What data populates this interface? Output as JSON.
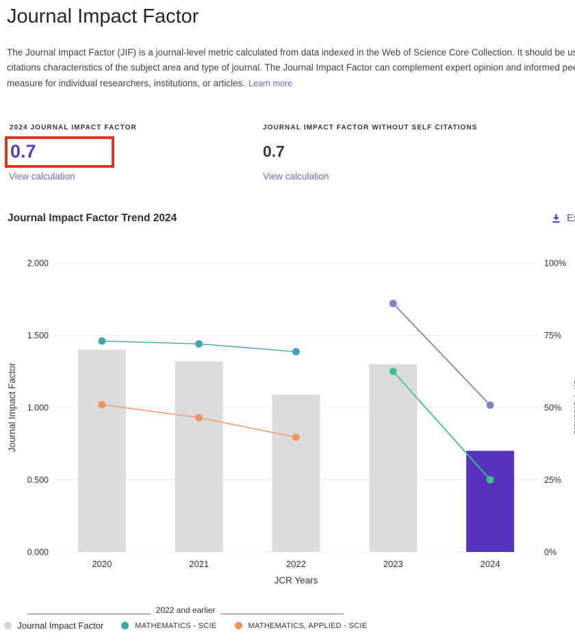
{
  "page": {
    "title": "Journal Impact Factor",
    "description_lines": [
      "The Journal Impact Factor (JIF) is a journal-level metric calculated from data indexed in the Web of Science Core Collection. It should be used with careful attention to the many factors that influence citation rates, such as the volume of publication and",
      "citations characteristics of the subject area and type of journal. The Journal Impact Factor can complement expert opinion and informed peer review. In the case of academic evaluation for tenure, it is inappropriate to use a journal-level metric as a proxy",
      "measure for individual researchers, institutions, or articles."
    ],
    "learn_more_label": "Learn more"
  },
  "metrics": {
    "jif": {
      "label": "2024 JOURNAL IMPACT FACTOR",
      "value": "0.7",
      "link_label": "View calculation"
    },
    "jif_without_self_citations": {
      "label": "JOURNAL IMPACT FACTOR WITHOUT SELF CITATIONS",
      "value": "0.7",
      "link_label": "View calculation"
    }
  },
  "trend_section": {
    "title": "Journal Impact Factor Trend 2024",
    "export_label": "Export"
  },
  "colors": {
    "accent_purple": "#5E33BF",
    "bar_gray": "#DCDCDC",
    "bar_highlight_purple": "#5733BE",
    "teal": "#44A3B1",
    "orange": "#F0945F",
    "slate_blue": "#7B85C9",
    "green": "#3DC28C",
    "gridline": "#EDEDED",
    "red_annotation": "#E63223"
  },
  "chart_data": {
    "type": "bar+line",
    "title": "Journal Impact Factor Trend 2024",
    "xlabel": "JCR Years",
    "ylabel_left": "Journal Impact Factor",
    "ylabel_right": "JIF Percentile",
    "categories": [
      "2020",
      "2021",
      "2022",
      "2023",
      "2024"
    ],
    "left_axis": {
      "min": 0,
      "max": 2,
      "tick_labels": [
        "0.000",
        "0.500",
        "1.000",
        "1.500",
        "2.000"
      ],
      "tick_values": [
        0,
        0.5,
        1,
        1.5,
        2
      ]
    },
    "right_axis": {
      "min": 0,
      "max": 100,
      "tick_labels": [
        "0%",
        "25%",
        "50%",
        "75%",
        "100%"
      ],
      "tick_values": [
        0,
        25,
        50,
        75,
        100
      ]
    },
    "bars": {
      "name": "Journal Impact Factor",
      "axis": "left",
      "values": [
        1.4,
        1.32,
        1.09,
        1.3,
        0.7
      ],
      "colors": [
        "#DCDCDC",
        "#DCDCDC",
        "#DCDCDC",
        "#DCDCDC",
        "#5733BE"
      ]
    },
    "lines": [
      {
        "name": "MATHEMATICS - SCIE",
        "axis": "right",
        "color": "#44A3B1",
        "start_index": 0,
        "values": [
          73,
          72,
          69.3
        ]
      },
      {
        "name": "MATHEMATICS, APPLIED - SCIE",
        "axis": "right",
        "color": "#F0945F",
        "start_index": 0,
        "values": [
          51,
          46.5,
          39.7
        ]
      },
      {
        "name": "",
        "axis": "right",
        "color": "#7B85C9",
        "start_index": 3,
        "values": [
          86,
          50.8
        ]
      },
      {
        "name": "",
        "axis": "right",
        "color": "#3DC28C",
        "start_index": 3,
        "values": [
          62.5,
          25
        ]
      }
    ],
    "legend": {
      "divider_label": "2022 and earlier",
      "items": [
        {
          "label": "Journal Impact Factor",
          "color": "#D3D3D3",
          "caps": false
        },
        {
          "label": "MATHEMATICS - SCIE",
          "color": "#44A3B1",
          "caps": true
        },
        {
          "label": "MATHEMATICS, APPLIED - SCIE",
          "color": "#F0945F",
          "caps": true
        }
      ]
    }
  }
}
